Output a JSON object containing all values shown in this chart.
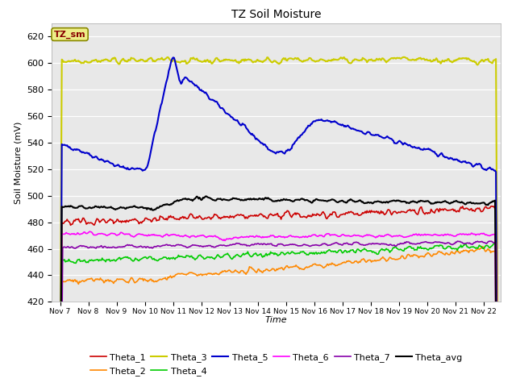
{
  "title": "TZ Soil Moisture",
  "xlabel": "Time",
  "ylabel": "Soil Moisture (mV)",
  "ylim": [
    420,
    630
  ],
  "bg_color": "#e8e8e8",
  "legend_label": "TZ_sm",
  "legend_box_facecolor": "#eeee88",
  "legend_box_edgecolor": "#888800",
  "series": {
    "Theta_1": {
      "color": "#cc0000"
    },
    "Theta_2": {
      "color": "#ff8800"
    },
    "Theta_3": {
      "color": "#cccc00"
    },
    "Theta_4": {
      "color": "#00cc00"
    },
    "Theta_5": {
      "color": "#0000cc"
    },
    "Theta_6": {
      "color": "#ff00ff"
    },
    "Theta_7": {
      "color": "#8800aa"
    },
    "Theta_avg": {
      "color": "#000000"
    }
  },
  "x_tick_labels": [
    "Nov 7",
    "Nov 8",
    "Nov 9",
    "Nov 10",
    "Nov 11",
    "Nov 12",
    "Nov 13",
    "Nov 14",
    "Nov 15",
    "Nov 16",
    "Nov 17",
    "Nov 18",
    "Nov 19",
    "Nov 20",
    "Nov 21",
    "Nov 22"
  ],
  "x_tick_positions": [
    0,
    1,
    2,
    3,
    4,
    5,
    6,
    7,
    8,
    9,
    10,
    11,
    12,
    13,
    14,
    15
  ],
  "yticks": [
    420,
    440,
    460,
    480,
    500,
    520,
    540,
    560,
    580,
    600,
    620
  ]
}
